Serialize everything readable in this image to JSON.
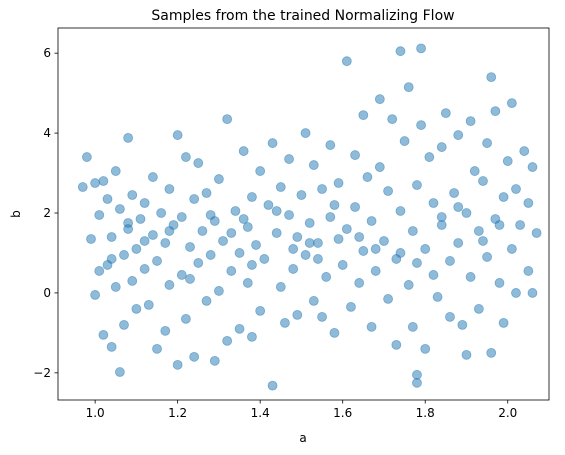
{
  "chart_data": {
    "type": "scatter",
    "title": "Samples from the trained Normalizing Flow",
    "xlabel": "a",
    "ylabel": "b",
    "color": "#1f77b4",
    "alpha": 0.5,
    "grid": false,
    "xlim": [
      0.91,
      2.1
    ],
    "ylim": [
      -2.68,
      6.63
    ],
    "xticks": [
      {
        "value": 1.0,
        "label": "1.0"
      },
      {
        "value": 1.2,
        "label": "1.2"
      },
      {
        "value": 1.4,
        "label": "1.4"
      },
      {
        "value": 1.6,
        "label": "1.6"
      },
      {
        "value": 1.8,
        "label": "1.8"
      },
      {
        "value": 2.0,
        "label": "2.0"
      }
    ],
    "yticks": [
      {
        "value": -2,
        "label": "−2"
      },
      0,
      2,
      4,
      6
    ],
    "x": [
      0.97,
      0.98,
      0.99,
      1.0,
      1.0,
      1.01,
      1.01,
      1.02,
      1.02,
      1.03,
      1.03,
      1.04,
      1.04,
      1.05,
      1.05,
      1.06,
      1.06,
      1.07,
      1.07,
      1.08,
      1.08,
      1.09,
      1.09,
      1.1,
      1.1,
      1.11,
      1.12,
      1.12,
      1.13,
      1.14,
      1.14,
      1.15,
      1.15,
      1.16,
      1.17,
      1.17,
      1.18,
      1.18,
      1.19,
      1.2,
      1.2,
      1.21,
      1.21,
      1.22,
      1.22,
      1.23,
      1.24,
      1.24,
      1.25,
      1.25,
      1.26,
      1.27,
      1.27,
      1.28,
      1.29,
      1.29,
      1.3,
      1.3,
      1.31,
      1.32,
      1.32,
      1.33,
      1.34,
      1.35,
      1.35,
      1.36,
      1.37,
      1.37,
      1.38,
      1.38,
      1.39,
      1.4,
      1.4,
      1.41,
      1.42,
      1.43,
      1.43,
      1.44,
      1.45,
      1.45,
      1.46,
      1.47,
      1.47,
      1.48,
      1.49,
      1.49,
      1.5,
      1.51,
      1.51,
      1.52,
      1.53,
      1.53,
      1.54,
      1.55,
      1.55,
      1.56,
      1.57,
      1.57,
      1.58,
      1.59,
      1.59,
      1.6,
      1.61,
      1.61,
      1.62,
      1.63,
      1.63,
      1.64,
      1.65,
      1.65,
      1.66,
      1.67,
      1.67,
      1.68,
      1.69,
      1.69,
      1.7,
      1.71,
      1.71,
      1.72,
      1.73,
      1.73,
      1.74,
      1.74,
      1.75,
      1.76,
      1.76,
      1.77,
      1.77,
      1.78,
      1.78,
      1.78,
      1.79,
      1.79,
      1.8,
      1.8,
      1.81,
      1.82,
      1.82,
      1.83,
      1.84,
      1.84,
      1.85,
      1.86,
      1.86,
      1.87,
      1.88,
      1.88,
      1.89,
      1.9,
      1.9,
      1.91,
      1.91,
      1.92,
      1.93,
      1.93,
      1.94,
      1.95,
      1.95,
      1.96,
      1.96,
      1.97,
      1.97,
      1.98,
      1.99,
      1.99,
      2.0,
      2.01,
      2.01,
      2.02,
      2.02,
      2.03,
      2.04,
      2.05,
      2.05,
      2.06,
      2.06,
      2.07,
      1.48,
      1.36,
      1.12,
      1.23,
      1.33,
      1.44,
      1.54,
      1.64,
      1.74,
      1.84,
      1.94,
      1.04,
      1.18,
      1.28,
      1.38,
      1.58,
      1.68,
      1.78,
      1.88,
      1.98,
      1.08,
      1.52
    ],
    "y": [
      2.65,
      3.4,
      1.35,
      -0.05,
      2.75,
      0.55,
      1.95,
      -1.05,
      2.8,
      0.7,
      2.35,
      -1.35,
      1.4,
      0.15,
      3.05,
      -1.98,
      2.1,
      0.95,
      -0.8,
      3.88,
      1.6,
      0.3,
      2.45,
      -0.4,
      1.1,
      1.85,
      0.6,
      2.25,
      -0.3,
      1.45,
      2.9,
      -1.4,
      0.8,
      2.0,
      1.25,
      -0.95,
      0.2,
      2.6,
      1.7,
      3.95,
      -1.8,
      0.45,
      1.9,
      3.4,
      -0.65,
      1.15,
      2.35,
      -1.6,
      0.75,
      3.25,
      1.55,
      -0.2,
      2.5,
      0.95,
      -1.7,
      1.8,
      0.05,
      2.85,
      1.3,
      -1.2,
      4.35,
      0.55,
      2.05,
      1.0,
      -0.9,
      3.55,
      1.65,
      0.25,
      2.4,
      -1.1,
      1.2,
      3.05,
      -0.45,
      0.85,
      2.2,
      -2.32,
      3.75,
      1.5,
      0.15,
      2.65,
      -0.75,
      1.95,
      3.35,
      0.6,
      1.4,
      -0.55,
      2.45,
      4.0,
      0.95,
      1.75,
      -0.2,
      3.2,
      1.25,
      2.6,
      -0.6,
      0.4,
      1.9,
      3.7,
      -1.0,
      1.35,
      2.75,
      0.7,
      5.8,
      1.6,
      -0.35,
      2.15,
      3.45,
      0.25,
      4.45,
      1.05,
      2.9,
      -0.85,
      1.8,
      0.55,
      3.15,
      4.85,
      1.3,
      -0.15,
      2.55,
      4.35,
      0.85,
      -1.3,
      6.05,
      2.05,
      3.8,
      5.15,
      0.2,
      1.55,
      -0.85,
      -2.25,
      -2.05,
      2.7,
      6.12,
      4.2,
      1.1,
      -1.4,
      3.4,
      0.45,
      2.25,
      -0.1,
      3.65,
      1.7,
      4.5,
      0.8,
      -0.6,
      2.5,
      1.25,
      3.95,
      -0.8,
      2.0,
      -1.55,
      4.3,
      0.4,
      3.05,
      1.55,
      -0.4,
      2.8,
      3.75,
      0.9,
      5.4,
      -1.5,
      1.85,
      4.55,
      0.25,
      2.4,
      -0.75,
      3.3,
      1.1,
      4.75,
      0.0,
      2.6,
      1.7,
      3.55,
      0.55,
      2.25,
      0.0,
      3.15,
      1.5,
      1.1,
      1.85,
      1.3,
      0.35,
      1.5,
      2.05,
      0.85,
      1.4,
      1.0,
      1.9,
      1.3,
      0.85,
      1.55,
      1.95,
      0.7,
      2.2,
      1.1,
      0.75,
      2.15,
      1.7,
      1.75,
      1.25
    ]
  }
}
